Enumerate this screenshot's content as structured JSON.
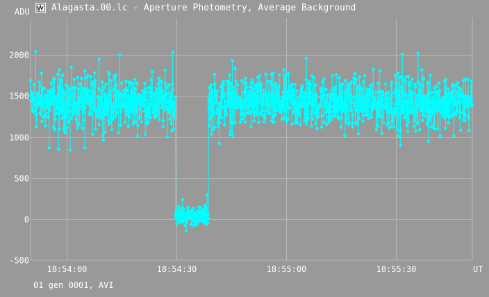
{
  "window": {
    "title": "Alagasta.00.lc - Aperture Photometry, Average Background",
    "icon": "lightcurve-app-icon"
  },
  "footer": {
    "text": "01 gen 0001, AVI"
  },
  "colors": {
    "background": "#999999",
    "grid": "#b9b9b9",
    "series": "#00ffff",
    "text": "#ffffff"
  },
  "chart_data": {
    "type": "line",
    "title": "",
    "ylabel": "ADU",
    "xlabel": "UT",
    "ylim": [
      -500,
      2450
    ],
    "xlim": [
      "18:53:50.2",
      "18:55:50.8"
    ],
    "grid": true,
    "y_ticks": [
      -500,
      0,
      500,
      1000,
      1500,
      2000
    ],
    "x_ticks": [
      "18:54:00",
      "18:54:30",
      "18:55:00",
      "18:55:30"
    ],
    "marker": "circle",
    "series": [
      {
        "name": "",
        "segments": [
          {
            "t_start": "18:53:50.2",
            "t_end": "18:54:29.8",
            "mean": 1420,
            "spread": 200,
            "count": 520
          },
          {
            "t_start": "18:54:29.8",
            "t_end": "18:54:30.8",
            "mean": 60,
            "spread": 70,
            "count": 12
          },
          {
            "t_start": "18:54:30.8",
            "t_end": "18:54:38.8",
            "mean": 40,
            "spread": 70,
            "count": 100
          },
          {
            "t_start": "18:54:38.8",
            "t_end": "18:55:50.8",
            "mean": 1420,
            "spread": 200,
            "count": 940
          }
        ],
        "peaks": [
          {
            "t": "18:53:51.6",
            "y": 2040
          },
          {
            "t": "18:53:58.1",
            "y": 1820
          },
          {
            "t": "18:54:08.9",
            "y": 1950
          },
          {
            "t": "18:54:14.5",
            "y": 2000
          },
          {
            "t": "18:54:29.0",
            "y": 2030
          },
          {
            "t": "18:54:45.3",
            "y": 1930
          },
          {
            "t": "18:55:05.5",
            "y": 1960
          },
          {
            "t": "18:55:31.7",
            "y": 2010
          },
          {
            "t": "18:55:36.0",
            "y": 2020
          },
          {
            "t": "18:55:31.2",
            "y": 900
          },
          {
            "t": "18:53:55.3",
            "y": 870
          },
          {
            "t": "18:53:57.9",
            "y": 850
          },
          {
            "t": "18:54:01.0",
            "y": 840
          },
          {
            "t": "18:54:05.0",
            "y": 870
          },
          {
            "t": "18:54:41.7",
            "y": 920
          },
          {
            "t": "18:55:38.8",
            "y": 950
          },
          {
            "t": "18:54:38.4",
            "y": 300
          },
          {
            "t": "18:54:32.7",
            "y": -140
          },
          {
            "t": "18:54:31.7",
            "y": 240
          }
        ]
      }
    ]
  }
}
